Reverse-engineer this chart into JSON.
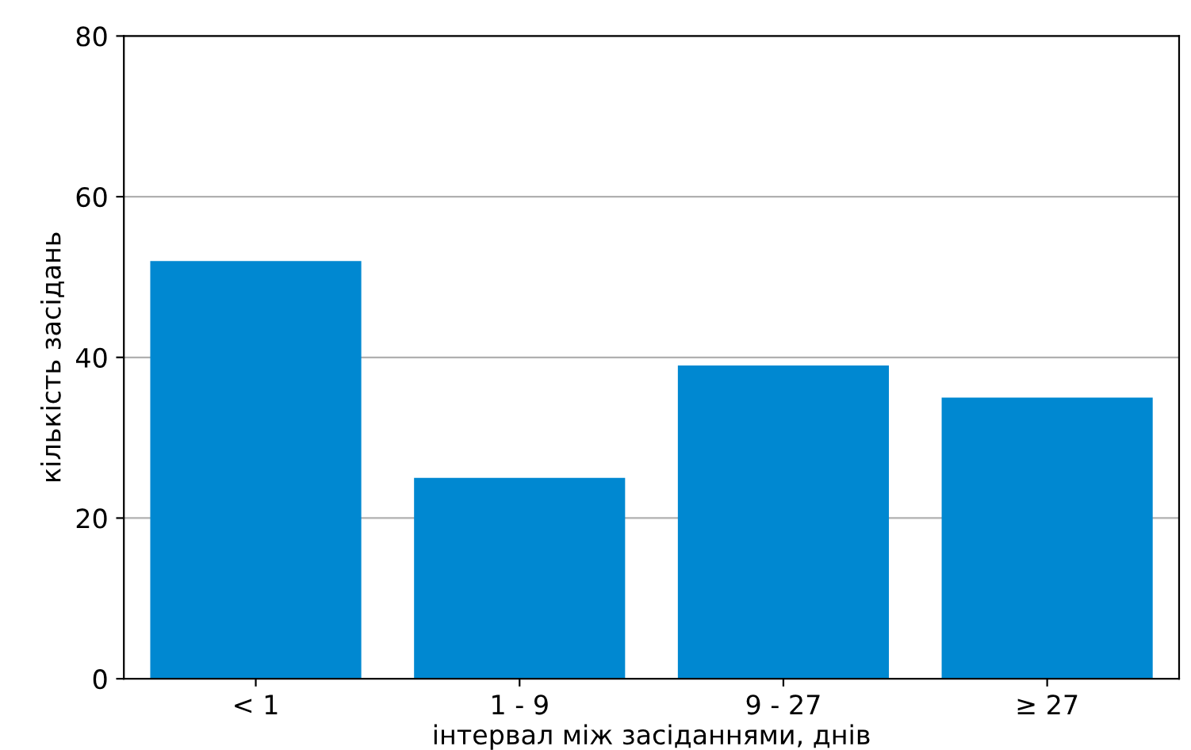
{
  "chart_data": {
    "type": "bar",
    "xlabel": "інтервал між засіданнями, днів",
    "ylabel": "кількість засідань",
    "categories": [
      "< 1",
      "1 - 9",
      "9 - 27",
      "≥ 27"
    ],
    "values": [
      52,
      25,
      39,
      35
    ],
    "color": "#0088d1",
    "ylim": [
      0,
      80
    ],
    "yticks": [
      0,
      20,
      40,
      60,
      80
    ],
    "grid": "y"
  }
}
